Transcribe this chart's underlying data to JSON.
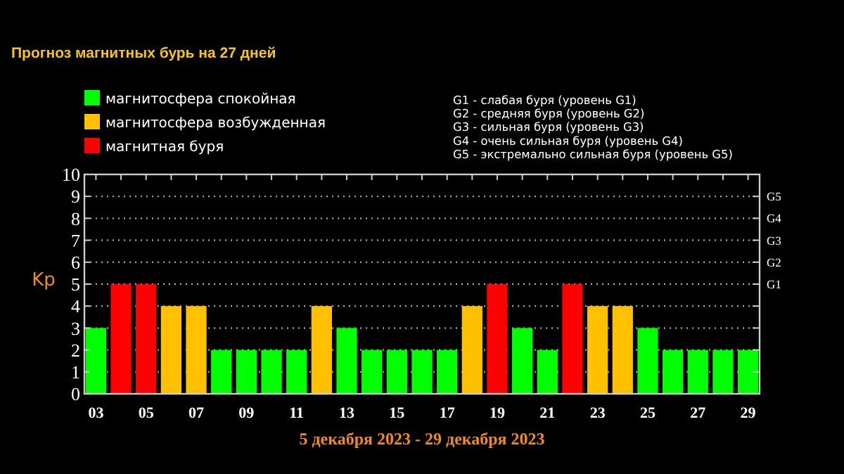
{
  "chart_data": {
    "type": "bar",
    "title": "Прогноз магнитных бурь на 27 дней",
    "xlabel": "5 декабря 2023 - 29 декабря 2023",
    "ylabel": "Kp",
    "categories": [
      "03",
      null,
      "05",
      null,
      "07",
      null,
      "09",
      null,
      "11",
      null,
      "13",
      null,
      "15",
      null,
      "17",
      null,
      "19",
      null,
      "21",
      null,
      "23",
      null,
      "25",
      null,
      "27",
      null,
      "29"
    ],
    "series": [
      {
        "name": "магнитосфера спокойная",
        "color": "#00ff00",
        "values": [
          3,
          null,
          null,
          null,
          null,
          2,
          2,
          2,
          2,
          null,
          3,
          2,
          2,
          2,
          2,
          null,
          null,
          3,
          2,
          null,
          null,
          null,
          3,
          2,
          2,
          2,
          2
        ]
      },
      {
        "name": "магнитосфера возбужденная",
        "color": "#ffc000",
        "values": [
          null,
          null,
          null,
          4,
          4,
          null,
          null,
          null,
          null,
          4,
          null,
          null,
          null,
          null,
          null,
          4,
          null,
          null,
          null,
          null,
          4,
          4,
          null,
          null,
          null,
          null,
          null
        ]
      },
      {
        "name": "магнитная буря",
        "color": "#ff0000",
        "values": [
          null,
          5,
          5,
          null,
          null,
          null,
          null,
          null,
          null,
          null,
          null,
          null,
          null,
          null,
          null,
          null,
          5,
          null,
          null,
          5,
          null,
          null,
          null,
          null,
          null,
          null,
          null
        ]
      }
    ],
    "ylim": [
      0,
      10
    ],
    "yticks": [
      0,
      1,
      2,
      3,
      4,
      5,
      6,
      7,
      8,
      9,
      10
    ],
    "grid": "y",
    "legend": "top left",
    "annotations": [
      "G1",
      "G2",
      "G3",
      "G4",
      "G5",
      "G1 - слабая буря (уровень G1)",
      "G2 - средняя буря (уровень G2)",
      "G3 - сильная буря (уровень G3)",
      "G4 - очень сильная буря (уровень G4)",
      "G5 - экстремально сильная буря (уровень G5)"
    ]
  }
}
